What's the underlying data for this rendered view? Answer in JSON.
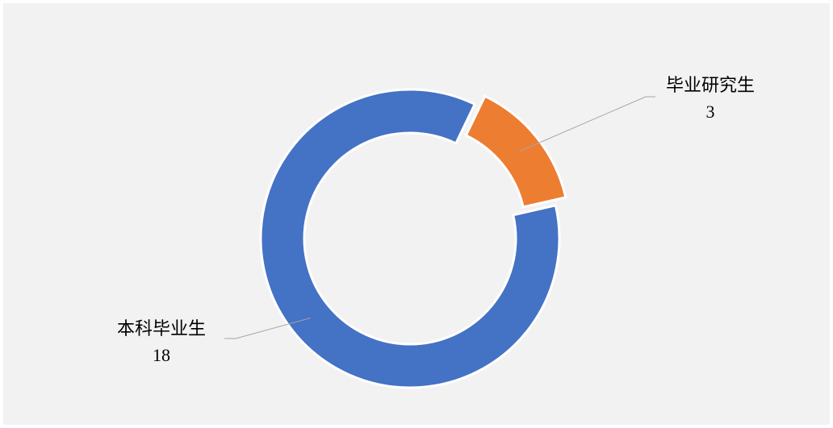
{
  "chart_data": {
    "type": "donut",
    "categories": [
      "毕业研究生",
      "本科毕业生"
    ],
    "values": [
      3,
      18
    ],
    "colors": [
      "#ed7d31",
      "#4472c4"
    ],
    "exploded": [
      true,
      false
    ]
  }
}
